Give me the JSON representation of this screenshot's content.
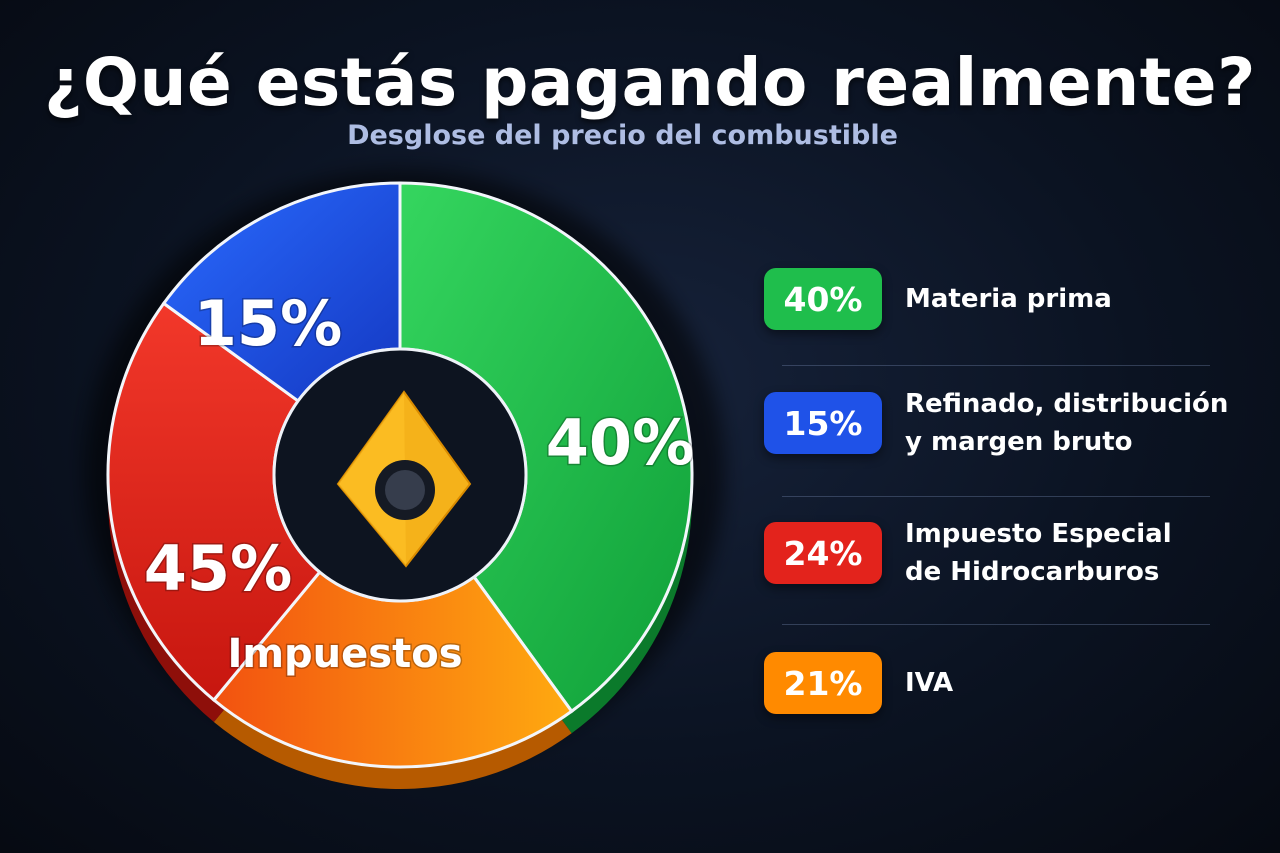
{
  "header": {
    "title": "¿Qué estás pagando realmente?",
    "subtitle": "Desglose del precio del combustible"
  },
  "chart_data": {
    "type": "pie",
    "donut": true,
    "center_icon": "fuel-drop-icon",
    "slices": [
      {
        "label": "Materia prima",
        "value": 40,
        "color": "#1fbe4c"
      },
      {
        "label": "Refinado, distribución y margen bruto",
        "value": 15,
        "color": "#1f52e8"
      },
      {
        "label": "Impuesto Especial de Hidrocarburos",
        "value": 24,
        "color": "#e3231c"
      },
      {
        "label": "IVA",
        "value": 21,
        "color": "#ff8a00"
      }
    ],
    "pie_labels": [
      {
        "text": "40%",
        "slice": "Materia prima"
      },
      {
        "text": "15%",
        "slice": "Refinado, distribución y margen bruto"
      },
      {
        "text": "45%",
        "slice": "Impuestos"
      },
      {
        "text": "Impuestos",
        "slice": "Impuestos"
      }
    ],
    "legend": [
      {
        "badge": "40%",
        "label": "Materia prima",
        "color": "#1fbe4c"
      },
      {
        "badge": "15%",
        "label": "Refinado, distribución\ny margen bruto",
        "color": "#1f52e8"
      },
      {
        "badge": "24%",
        "label": "Impuesto Especial\nde Hidrocarburos",
        "color": "#e3231c"
      },
      {
        "badge": "21%",
        "label": "IVA",
        "color": "#ff8a00"
      }
    ]
  }
}
